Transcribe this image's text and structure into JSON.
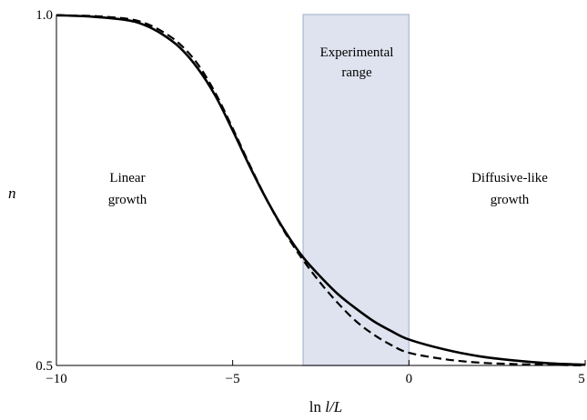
{
  "chart_data": {
    "type": "line",
    "xlabel_prefix": "ln ",
    "xlabel_main": "l/L",
    "ylabel": "n",
    "xlim": [
      -10,
      5
    ],
    "ylim": [
      0.5,
      1.0
    ],
    "x_ticks": [
      {
        "value": -10,
        "label": "−10"
      },
      {
        "value": -5,
        "label": "−5"
      },
      {
        "value": 0,
        "label": "0"
      },
      {
        "value": 5,
        "label": "5"
      }
    ],
    "y_ticks": [
      {
        "value": 0.5,
        "label": "0.5"
      },
      {
        "value": 1.0,
        "label": "1.0"
      }
    ],
    "shaded_region": {
      "x_start": -3,
      "x_end": 0,
      "color": "#dfe3ef",
      "edge_color": "#b9c1d8"
    },
    "annotations": {
      "experimental_line1": "Experimental",
      "experimental_line2": "range",
      "linear_line1": "Linear",
      "linear_line2": "growth",
      "diffusive_line1": "Diffusive-like",
      "diffusive_line2": "growth"
    },
    "series": [
      {
        "style": "solid",
        "color": "#000000",
        "x": [
          -10,
          -9,
          -8,
          -7.5,
          -7,
          -6.5,
          -6,
          -5.5,
          -5,
          -4.5,
          -4,
          -3.5,
          -3,
          -2.5,
          -2,
          -1.5,
          -1,
          -0.5,
          0,
          1,
          2,
          3,
          4,
          5
        ],
        "y": [
          0.999,
          0.997,
          0.992,
          0.985,
          0.972,
          0.953,
          0.924,
          0.885,
          0.835,
          0.782,
          0.733,
          0.69,
          0.654,
          0.626,
          0.601,
          0.581,
          0.563,
          0.549,
          0.537,
          0.523,
          0.513,
          0.507,
          0.503,
          0.501
        ]
      },
      {
        "style": "dashed",
        "color": "#000000",
        "x": [
          -10,
          -9,
          -8,
          -7.5,
          -7,
          -6.5,
          -6,
          -5.5,
          -5,
          -4.5,
          -4,
          -3.5,
          -3,
          -2.5,
          -2,
          -1.5,
          -1,
          -0.5,
          0,
          1,
          2,
          3,
          4,
          5
        ],
        "y": [
          0.999,
          0.998,
          0.994,
          0.988,
          0.976,
          0.958,
          0.93,
          0.889,
          0.838,
          0.784,
          0.733,
          0.688,
          0.65,
          0.617,
          0.588,
          0.563,
          0.544,
          0.529,
          0.518,
          0.509,
          0.504,
          0.502,
          0.501,
          0.5
        ]
      }
    ]
  }
}
